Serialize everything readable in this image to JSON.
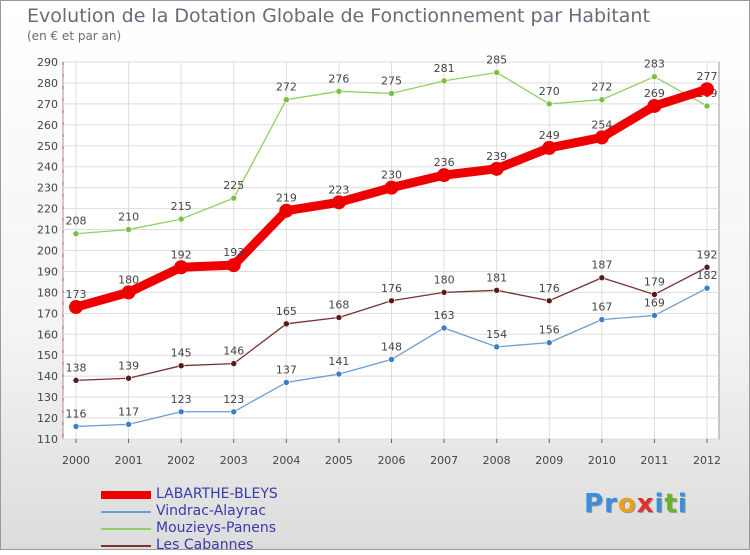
{
  "title": "Evolution de la Dotation Globale de Fonctionnement par Habitant",
  "subtitle": "(en € et par an)",
  "logo": {
    "chars": [
      "P",
      "r",
      "o",
      "x",
      "i",
      "t",
      "i"
    ],
    "colors": [
      "#3a8fd8",
      "#3a8fd8",
      "#e8a020",
      "#e03030",
      "#3a8fd8",
      "#6cb030",
      "#3a8fd8"
    ]
  },
  "chart_data": {
    "type": "line",
    "title": "Evolution de la Dotation Globale de Fonctionnement par Habitant",
    "ylabel": "(en € et par an)",
    "xlabel": "",
    "x": [
      "2000",
      "2001",
      "2002",
      "2003",
      "2004",
      "2005",
      "2006",
      "2007",
      "2008",
      "2009",
      "2010",
      "2011",
      "2012"
    ],
    "ylim": [
      110,
      290
    ],
    "yticks": [
      110,
      120,
      130,
      140,
      150,
      160,
      170,
      180,
      190,
      200,
      210,
      220,
      230,
      240,
      250,
      260,
      270,
      280,
      290
    ],
    "grid": true,
    "series": [
      {
        "name": "LABARTHE-BLEYS",
        "color": "#ee0000",
        "bold": true,
        "values": [
          173,
          180,
          192,
          193,
          219,
          223,
          230,
          236,
          239,
          249,
          254,
          269,
          277
        ]
      },
      {
        "name": "Vindrac-Alayrac",
        "color": "#6a9fd4",
        "marker": "#3a7fc8",
        "values": [
          116,
          117,
          123,
          123,
          137,
          141,
          148,
          163,
          154,
          156,
          167,
          169,
          182
        ]
      },
      {
        "name": "Mouzieys-Panens",
        "color": "#90d060",
        "marker": "#78c040",
        "values": [
          208,
          210,
          215,
          225,
          272,
          276,
          275,
          281,
          285,
          270,
          272,
          283,
          269
        ]
      },
      {
        "name": "Les Cabannes",
        "color": "#7a3030",
        "marker": "#5a1818",
        "values": [
          138,
          139,
          145,
          146,
          165,
          168,
          176,
          180,
          181,
          176,
          187,
          179,
          192
        ]
      }
    ]
  }
}
